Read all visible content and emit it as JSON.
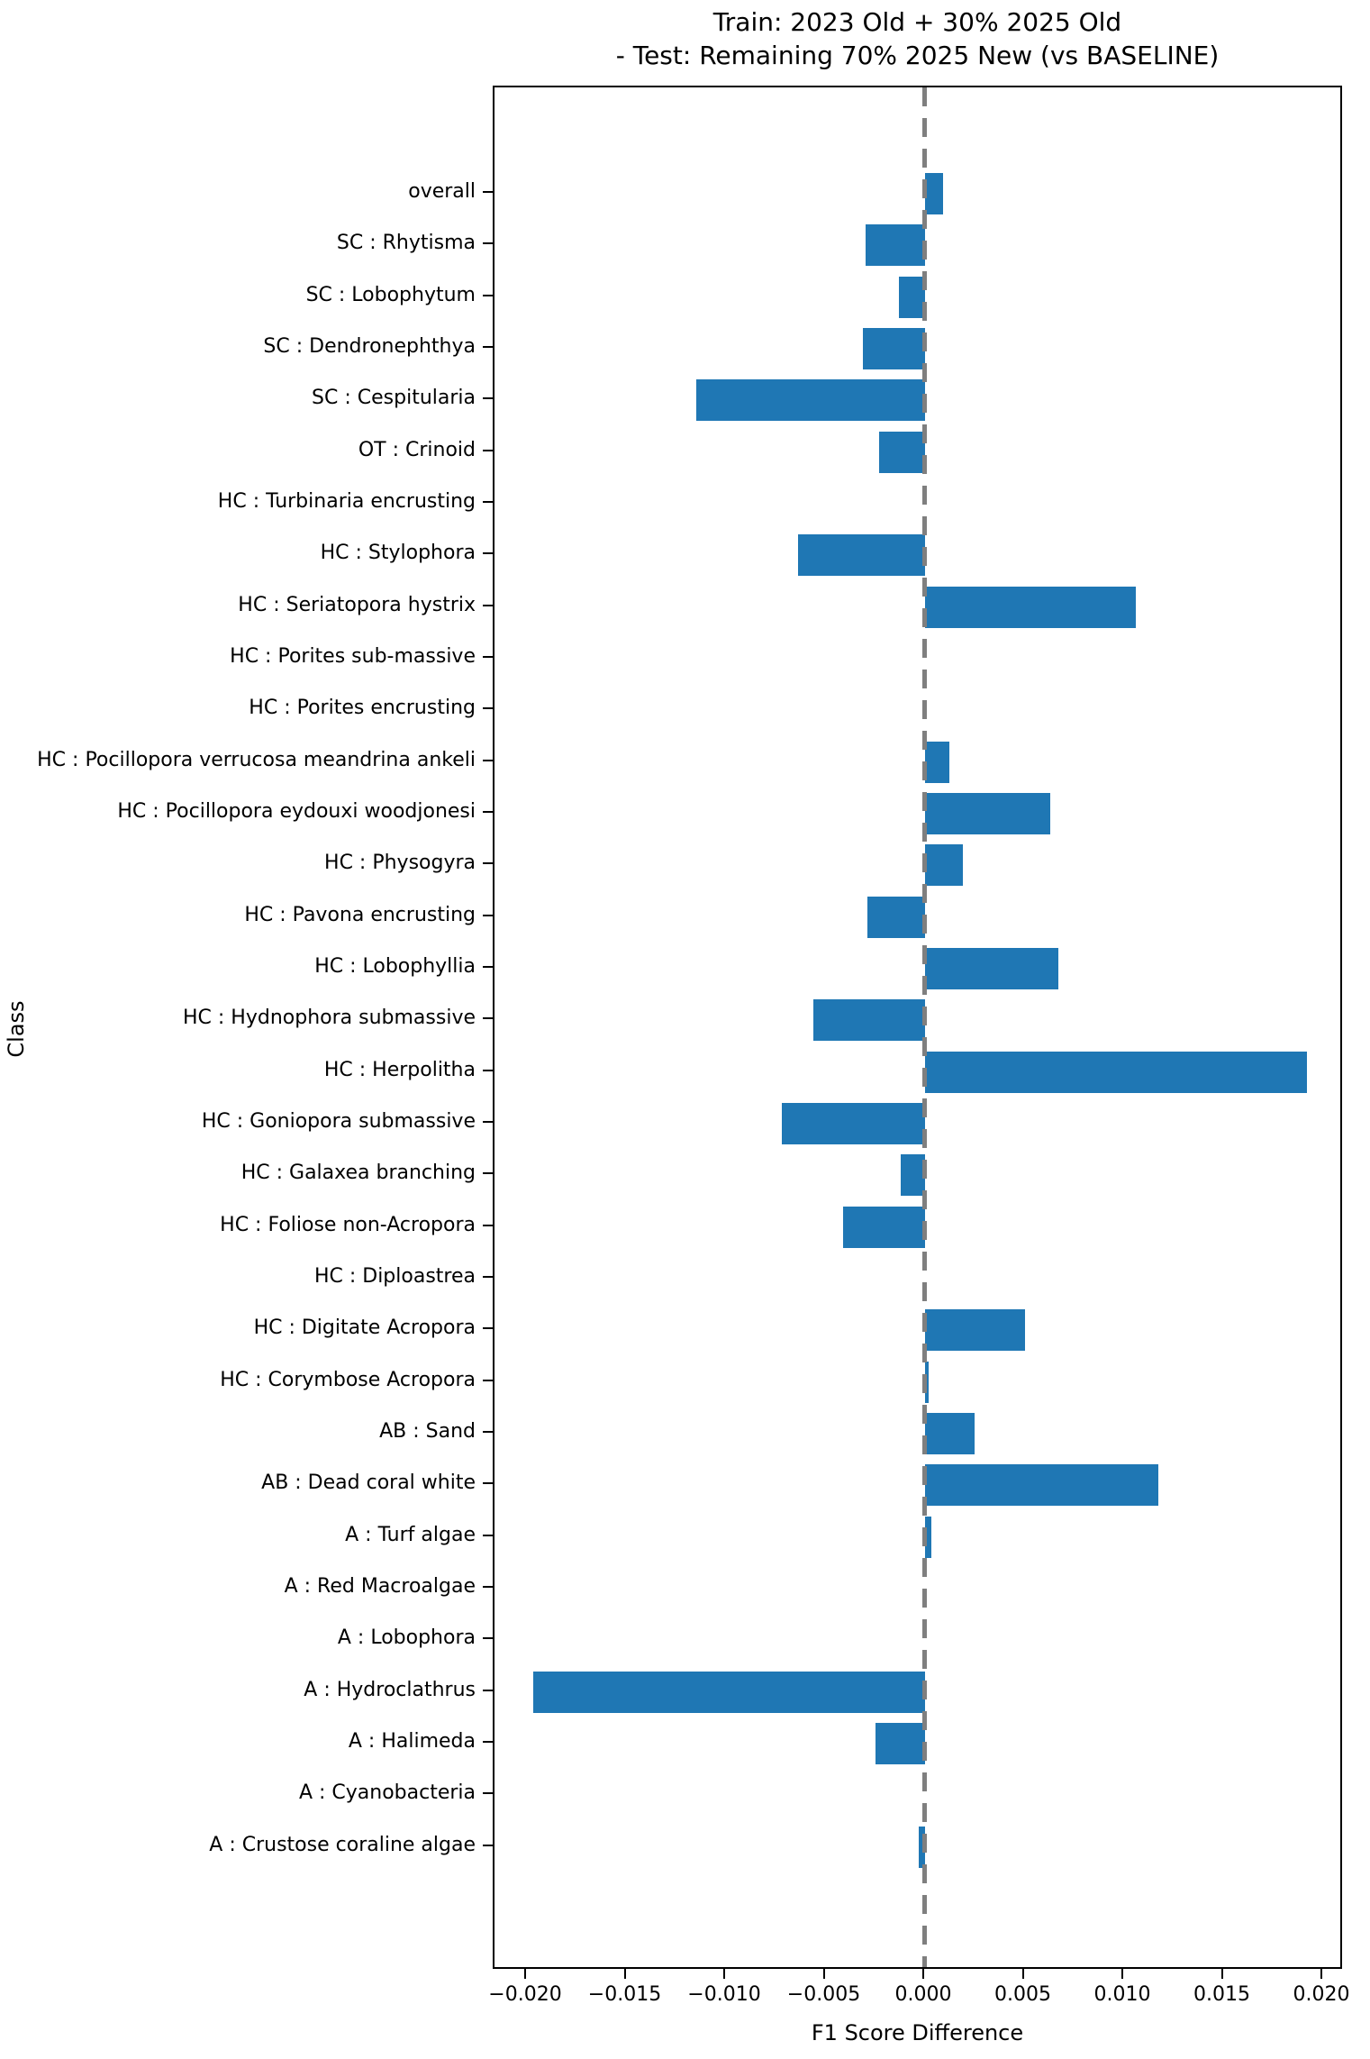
{
  "figure": {
    "title_line1": "Train: 2023 Old + 30% 2025 Old",
    "title_line2": "- Test: Remaining 70% 2025 New (vs BASELINE)"
  },
  "chart_data": {
    "type": "bar",
    "orientation": "horizontal",
    "title": "Train: 2023 Old + 30% 2025 Old - Test: Remaining 70% 2025 New (vs BASELINE)",
    "xlabel": "F1 Score Difference",
    "ylabel": "Class",
    "xlim": [
      -0.0216,
      0.0211
    ],
    "grid": false,
    "legend": "none",
    "bar_color": "#1f77b4",
    "zero_line": {
      "x": 0,
      "style": "dashed",
      "color": "#7f7f7f"
    },
    "x_ticks": [
      -0.02,
      -0.015,
      -0.01,
      -0.005,
      0.0,
      0.005,
      0.01,
      0.015,
      0.02
    ],
    "x_tick_labels": [
      "−0.020",
      "−0.015",
      "−0.010",
      "−0.005",
      "0.000",
      "0.005",
      "0.010",
      "0.015",
      "0.020"
    ],
    "categories": [
      "overall",
      "SC : Rhytisma",
      "SC : Lobophytum",
      "SC : Dendronephthya",
      "SC : Cespitularia",
      "OT : Crinoid",
      "HC : Turbinaria encrusting",
      "HC : Stylophora",
      "HC : Seriatopora hystrix",
      "HC : Porites sub-massive",
      "HC : Porites encrusting",
      "HC : Pocillopora verrucosa meandrina ankeli",
      "HC : Pocillopora eydouxi woodjonesi",
      "HC : Physogyra",
      "HC : Pavona encrusting",
      "HC : Lobophyllia",
      "HC : Hydnophora submassive",
      "HC : Herpolitha",
      "HC : Goniopora submassive",
      "HC : Galaxea branching",
      "HC : Foliose non-Acropora",
      "HC : Diploastrea",
      "HC : Digitate Acropora",
      "HC : Corymbose Acropora",
      "AB : Sand",
      "AB : Dead coral white",
      "A : Turf algae",
      "A : Red Macroalgae",
      "A : Lobophora",
      "A : Hydroclathrus",
      "A : Halimeda",
      "A : Cyanobacteria",
      "A : Crustose coraline algae"
    ],
    "values": [
      0.0009,
      -0.003,
      -0.0013,
      -0.0031,
      -0.0115,
      -0.0023,
      0,
      -0.0064,
      0.0106,
      0,
      0,
      0.0012,
      0.0063,
      0.0019,
      -0.0029,
      0.0067,
      -0.0056,
      0.0192,
      -0.0072,
      -0.0012,
      -0.0041,
      0,
      0.005,
      0.0002,
      0.0025,
      0.0117,
      0.0003,
      0,
      0,
      -0.0197,
      -0.0025,
      0,
      -0.0003
    ]
  }
}
